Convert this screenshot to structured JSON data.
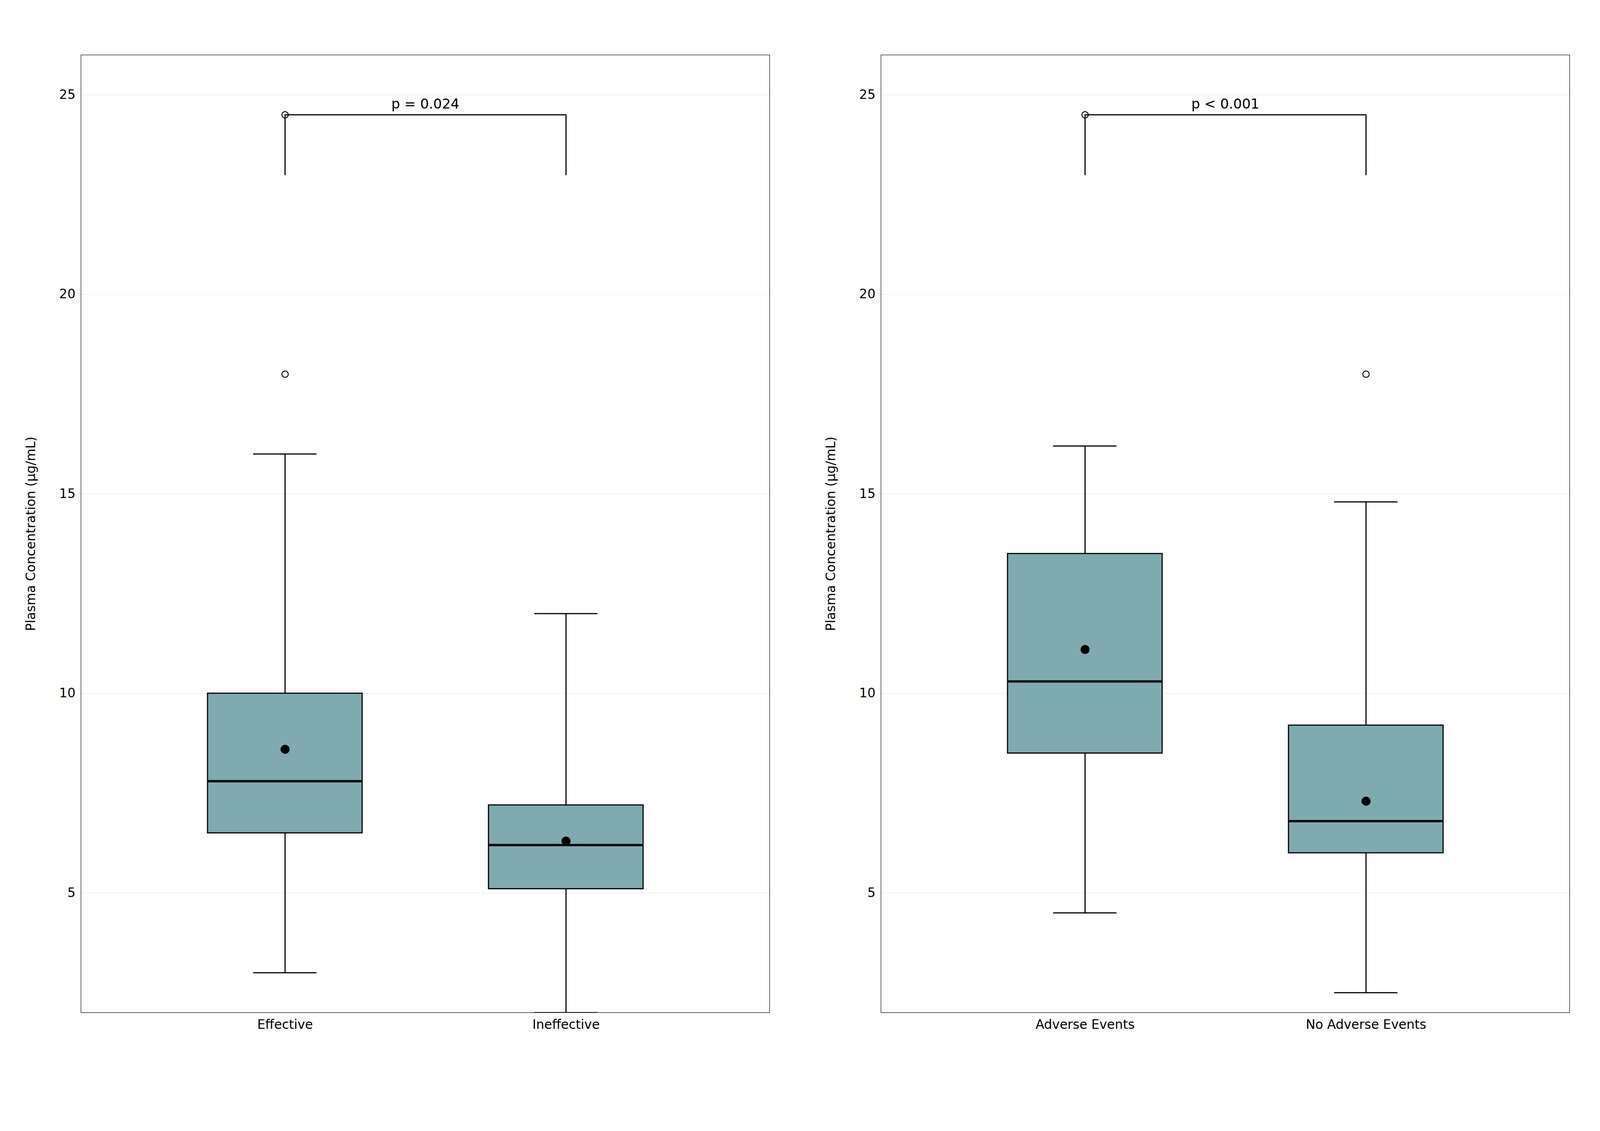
{
  "chart_data": [
    {
      "type": "box",
      "categories": [
        "Effective",
        "Ineffective"
      ],
      "boxes": [
        {
          "q1": 6.5,
          "median": 7.8,
          "q3": 10.0,
          "whislo": 3.0,
          "whishi": 16.0,
          "fliers": [
            18.0,
            24.5
          ],
          "mean": 8.6
        },
        {
          "q1": 5.1,
          "median": 6.2,
          "q3": 7.2,
          "whislo": 2.0,
          "whishi": 12.0,
          "fliers": [],
          "mean": 6.3
        }
      ],
      "annotation": {
        "text": "p = 0.024",
        "bracket_y": 24.5,
        "bracket_drop": 1.5
      },
      "ylabel": "Plasma Concentration (μg/mL)",
      "ylim": [
        2,
        26
      ],
      "yticks": [
        5,
        10,
        15,
        20,
        25
      ],
      "grid": true,
      "color": "#7FAAAF"
    },
    {
      "type": "box",
      "categories": [
        "Adverse Events",
        "No Adverse Events"
      ],
      "boxes": [
        {
          "q1": 8.5,
          "median": 10.3,
          "q3": 13.5,
          "whislo": 4.5,
          "whishi": 16.2,
          "fliers": [
            24.5
          ],
          "mean": 11.1
        },
        {
          "q1": 6.0,
          "median": 6.8,
          "q3": 9.2,
          "whislo": 2.5,
          "whishi": 14.8,
          "fliers": [
            18.0
          ],
          "mean": 7.3
        }
      ],
      "annotation": {
        "text": "p < 0.001",
        "bracket_y": 24.5,
        "bracket_drop": 1.5
      },
      "ylabel": "Plasma Concentration (μg/mL)",
      "ylim": [
        2,
        26
      ],
      "yticks": [
        5,
        10,
        15,
        20,
        25
      ],
      "grid": true,
      "color": "#7FAAAF"
    }
  ]
}
